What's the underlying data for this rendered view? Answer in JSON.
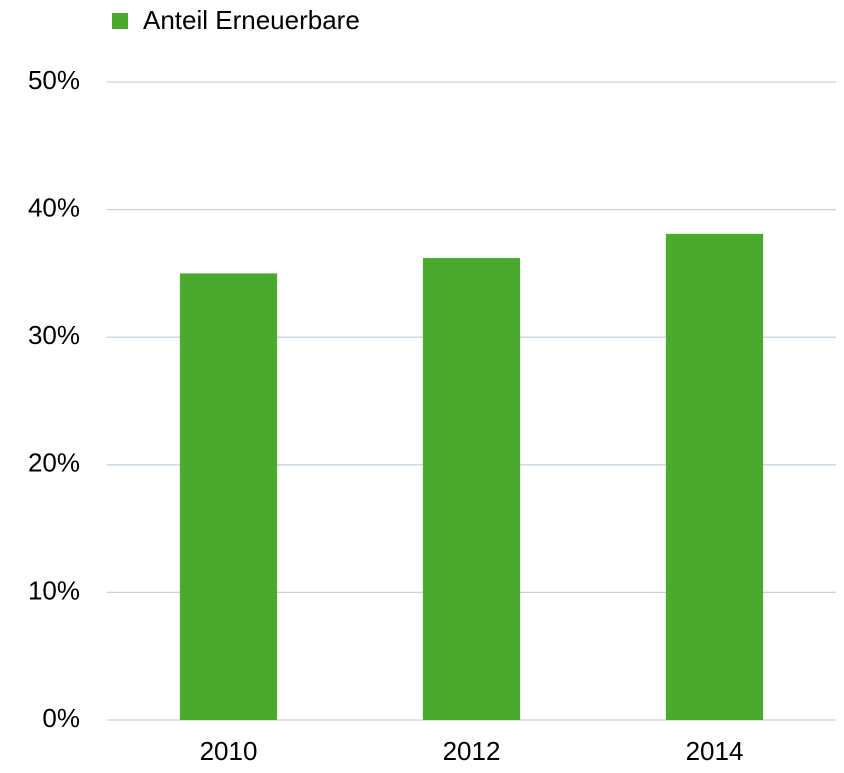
{
  "chart_data": {
    "type": "bar",
    "categories": [
      "2010",
      "2012",
      "2014"
    ],
    "series": [
      {
        "name": "Anteil Erneuerbare",
        "color": "#49aa2d",
        "values": [
          35,
          36.2,
          38.1
        ]
      }
    ],
    "ylim": [
      0,
      50
    ],
    "yticks": [
      {
        "value": 0,
        "label": "0%"
      },
      {
        "value": 10,
        "label": "10%"
      },
      {
        "value": 20,
        "label": "20%"
      },
      {
        "value": 30,
        "label": "30%"
      },
      {
        "value": 40,
        "label": "40%"
      },
      {
        "value": 50,
        "label": "50%"
      }
    ],
    "grid": true,
    "legend": "top"
  }
}
